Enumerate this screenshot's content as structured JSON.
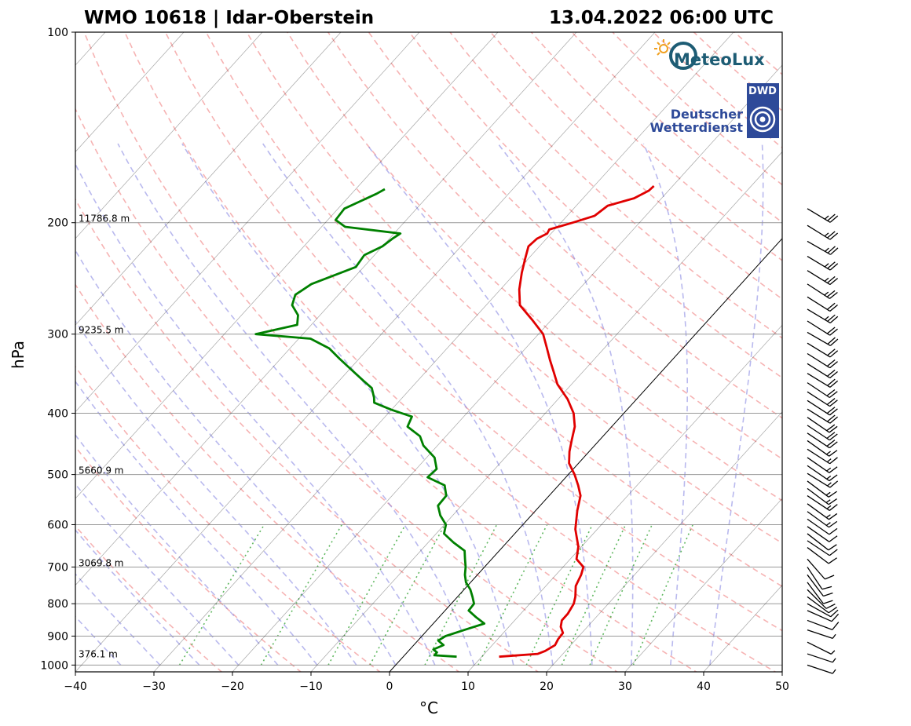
{
  "chart_data": {
    "type": "line",
    "title_left": "WMO 10618 | Idar-Oberstein",
    "title_right": "13.04.2022 06:00 UTC",
    "xlabel": "°C",
    "ylabel": "hPa",
    "xlim": [
      -40,
      50
    ],
    "ylim": [
      1025,
      100
    ],
    "y_scale": "log",
    "x_ticks": [
      -40,
      -30,
      -20,
      -10,
      0,
      10,
      20,
      30,
      40,
      50
    ],
    "x_tick_labels": [
      "−40",
      "−30",
      "−20",
      "−10",
      "0",
      "10",
      "20",
      "30",
      "40",
      "50"
    ],
    "y_ticks": [
      100,
      200,
      300,
      400,
      500,
      600,
      700,
      800,
      900,
      1000
    ],
    "y_tick_labels": [
      "100",
      "200",
      "300",
      "400",
      "500",
      "600",
      "700",
      "800",
      "900",
      "1000"
    ],
    "height_labels": [
      {
        "p": 200,
        "text": "11786.8 m"
      },
      {
        "p": 300,
        "text": "9235.5 m"
      },
      {
        "p": 500,
        "text": "5660.9 m"
      },
      {
        "p": 700,
        "text": "3069.8 m"
      },
      {
        "p": 975,
        "text": "376.1 m"
      }
    ],
    "grid": true,
    "skew": "skew-T log-p",
    "series": [
      {
        "color": "#e00000",
        "points": [
          [
            12.2,
            970
          ],
          [
            16.8,
            960
          ],
          [
            17.4,
            950
          ],
          [
            18.0,
            930
          ],
          [
            17.7,
            910
          ],
          [
            17.6,
            890
          ],
          [
            16.6,
            870
          ],
          [
            16.0,
            850
          ],
          [
            16.0,
            830
          ],
          [
            15.6,
            800
          ],
          [
            15.0,
            780
          ],
          [
            13.8,
            750
          ],
          [
            13.2,
            720
          ],
          [
            12.6,
            700
          ],
          [
            10.8,
            680
          ],
          [
            9.6,
            650
          ],
          [
            7.2,
            610
          ],
          [
            5.3,
            570
          ],
          [
            4.0,
            540
          ],
          [
            2.5,
            520
          ],
          [
            0.8,
            500
          ],
          [
            -1.2,
            480
          ],
          [
            -2.5,
            460
          ],
          [
            -3.6,
            440
          ],
          [
            -4.7,
            420
          ],
          [
            -6.4,
            400
          ],
          [
            -8.8,
            380
          ],
          [
            -11.8,
            360
          ],
          [
            -13.6,
            345
          ],
          [
            -15.5,
            330
          ],
          [
            -17.4,
            315
          ],
          [
            -19.4,
            300
          ],
          [
            -22.4,
            285
          ],
          [
            -25.7,
            270
          ],
          [
            -27.6,
            255
          ],
          [
            -29.2,
            240
          ],
          [
            -30.4,
            228
          ],
          [
            -31.4,
            218
          ],
          [
            -31.2,
            212
          ],
          [
            -30.5,
            208
          ],
          [
            -30.7,
            205
          ],
          [
            -28.5,
            200
          ],
          [
            -26.5,
            195
          ],
          [
            -26.0,
            188
          ],
          [
            -23.5,
            183
          ],
          [
            -22.5,
            178
          ],
          [
            -22.4,
            175
          ]
        ]
      },
      {
        "color": "#008000",
        "points": [
          [
            6.8,
            970
          ],
          [
            3.8,
            965
          ],
          [
            3.8,
            955
          ],
          [
            3.0,
            945
          ],
          [
            3.8,
            930
          ],
          [
            2.6,
            915
          ],
          [
            3.0,
            900
          ],
          [
            4.7,
            880
          ],
          [
            6.5,
            860
          ],
          [
            4.7,
            840
          ],
          [
            3.0,
            820
          ],
          [
            2.9,
            800
          ],
          [
            1.9,
            780
          ],
          [
            0.8,
            760
          ],
          [
            -0.6,
            740
          ],
          [
            -1.6,
            720
          ],
          [
            -2.4,
            700
          ],
          [
            -3.4,
            680
          ],
          [
            -4.4,
            660
          ],
          [
            -6.8,
            640
          ],
          [
            -9.0,
            620
          ],
          [
            -9.8,
            600
          ],
          [
            -11.6,
            580
          ],
          [
            -13.0,
            560
          ],
          [
            -13.1,
            540
          ],
          [
            -14.5,
            520
          ],
          [
            -17.6,
            505
          ],
          [
            -17.4,
            490
          ],
          [
            -19.0,
            470
          ],
          [
            -21.8,
            450
          ],
          [
            -23.3,
            435
          ],
          [
            -26.0,
            420
          ],
          [
            -26.6,
            405
          ],
          [
            -30.0,
            395
          ],
          [
            -33.0,
            385
          ],
          [
            -33.6,
            378
          ],
          [
            -35.0,
            365
          ],
          [
            -37.0,
            355
          ],
          [
            -40.0,
            340
          ],
          [
            -42.5,
            328
          ],
          [
            -45.0,
            316
          ],
          [
            -48.5,
            305
          ],
          [
            -56.0,
            300
          ],
          [
            -51.8,
            290
          ],
          [
            -52.8,
            280
          ],
          [
            -54.7,
            270
          ],
          [
            -55.5,
            260
          ],
          [
            -54.7,
            250
          ],
          [
            -51.0,
            235
          ],
          [
            -51.3,
            225
          ],
          [
            -50.0,
            218
          ],
          [
            -49.6,
            212
          ],
          [
            -49.2,
            208
          ],
          [
            -57.0,
            203
          ],
          [
            -59.0,
            198
          ],
          [
            -59.2,
            190
          ],
          [
            -58.0,
            185
          ],
          [
            -56.8,
            180
          ],
          [
            -56.3,
            177
          ]
        ]
      }
    ],
    "wind_barbs": [
      {
        "p": 190,
        "u": -20,
        "v": 12
      },
      {
        "p": 202,
        "u": -21,
        "v": 13
      },
      {
        "p": 214,
        "u": -21,
        "v": 12
      },
      {
        "p": 226,
        "u": -20,
        "v": 12
      },
      {
        "p": 238,
        "u": -21,
        "v": 13
      },
      {
        "p": 250,
        "u": -20,
        "v": 13
      },
      {
        "p": 262,
        "u": -19,
        "v": 12
      },
      {
        "p": 274,
        "u": -20,
        "v": 12
      },
      {
        "p": 286,
        "u": -19,
        "v": 12
      },
      {
        "p": 298,
        "u": -19,
        "v": 11
      },
      {
        "p": 310,
        "u": -18,
        "v": 11
      },
      {
        "p": 322,
        "u": -19,
        "v": 12
      },
      {
        "p": 334,
        "u": -19,
        "v": 12
      },
      {
        "p": 346,
        "u": -18,
        "v": 11
      },
      {
        "p": 358,
        "u": -18,
        "v": 12
      },
      {
        "p": 370,
        "u": -17,
        "v": 11
      },
      {
        "p": 382,
        "u": -17,
        "v": 11
      },
      {
        "p": 394,
        "u": -16,
        "v": 10
      },
      {
        "p": 406,
        "u": -16,
        "v": 11
      },
      {
        "p": 418,
        "u": -15,
        "v": 10
      },
      {
        "p": 430,
        "u": -15,
        "v": 10
      },
      {
        "p": 442,
        "u": -14,
        "v": 10
      },
      {
        "p": 456,
        "u": -14,
        "v": 9
      },
      {
        "p": 470,
        "u": -13,
        "v": 9
      },
      {
        "p": 484,
        "u": -13,
        "v": 9
      },
      {
        "p": 498,
        "u": -13,
        "v": 8
      },
      {
        "p": 512,
        "u": -12,
        "v": 9
      },
      {
        "p": 526,
        "u": -12,
        "v": 9
      },
      {
        "p": 540,
        "u": -12,
        "v": 8
      },
      {
        "p": 556,
        "u": -11,
        "v": 8
      },
      {
        "p": 572,
        "u": -11,
        "v": 8
      },
      {
        "p": 588,
        "u": -10,
        "v": 7
      },
      {
        "p": 604,
        "u": -10,
        "v": 7
      },
      {
        "p": 620,
        "u": -9,
        "v": 7
      },
      {
        "p": 636,
        "u": -9,
        "v": 6
      },
      {
        "p": 652,
        "u": -8,
        "v": 6
      },
      {
        "p": 680,
        "u": -7,
        "v": 8
      },
      {
        "p": 700,
        "u": -6,
        "v": 9
      },
      {
        "p": 720,
        "u": -6,
        "v": 8
      },
      {
        "p": 740,
        "u": -6,
        "v": 8
      },
      {
        "p": 760,
        "u": -7,
        "v": 7
      },
      {
        "p": 780,
        "u": -8,
        "v": 6
      },
      {
        "p": 800,
        "u": -9,
        "v": 5
      },
      {
        "p": 820,
        "u": -9,
        "v": 4
      },
      {
        "p": 850,
        "u": -8,
        "v": 3
      },
      {
        "p": 880,
        "u": -6,
        "v": 2
      },
      {
        "p": 920,
        "u": -4,
        "v": 2
      },
      {
        "p": 960,
        "u": -3,
        "v": 1
      },
      {
        "p": 1000,
        "u": -3,
        "v": 1
      }
    ]
  },
  "logos": {
    "meteolux": "MeteoLux",
    "dwd_line1": "Deutscher",
    "dwd_line2": "Wetterdienst",
    "dwd_abbrev": "DWD"
  },
  "colors": {
    "isotherm": "#000000",
    "dry_adiabat": "#f08080",
    "moist_adiabat": "#8080e0",
    "mixing_ratio": "#2ca02c",
    "temperature": "#e00000",
    "dewpoint": "#008000",
    "isobar": "#999999"
  }
}
